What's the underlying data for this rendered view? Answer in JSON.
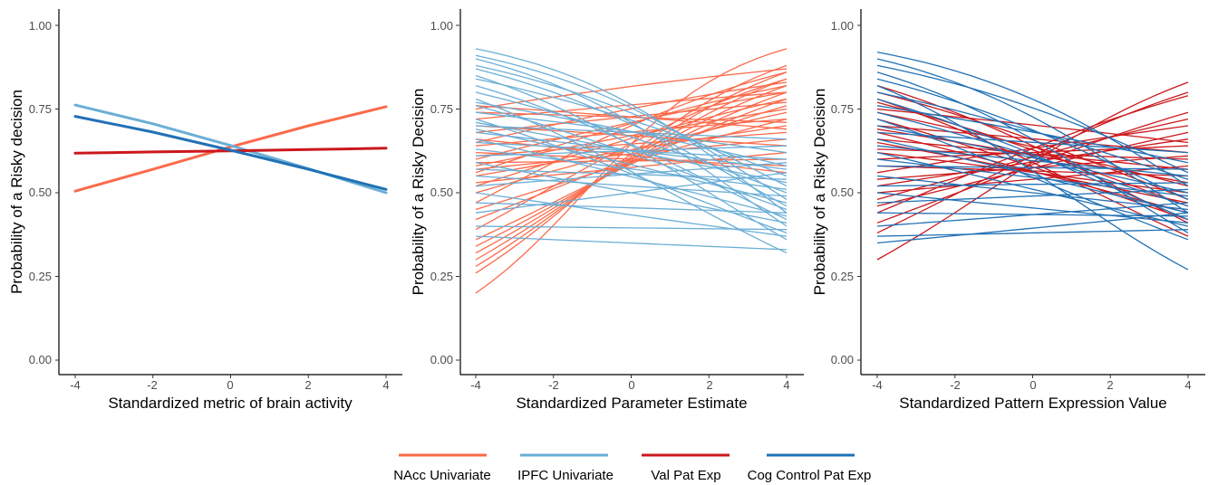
{
  "colors": {
    "nacc": "#fb6a4a",
    "ipfc": "#6baed6",
    "valpat": "#cb181d",
    "cogctrl": "#2171b5"
  },
  "legend": {
    "placement": "bottom",
    "items": [
      {
        "label": "NAcc Univariate",
        "color": "#fb6a4a"
      },
      {
        "label": "IPFC Univariate",
        "color": "#6baed6"
      },
      {
        "label": "Val Pat Exp",
        "color": "#cb181d"
      },
      {
        "label": "Cog Control Pat Exp",
        "color": "#2171b5"
      }
    ]
  },
  "chart_data": [
    {
      "type": "line",
      "xlabel": "Standardized metric of brain activity",
      "ylabel": "Probability of a Risky decision",
      "xlim": [
        -4,
        4
      ],
      "ylim": [
        0,
        1
      ],
      "xticks": [
        "-4",
        "-2",
        "0",
        "2",
        "4"
      ],
      "yticks": [
        "0.00",
        "0.25",
        "0.50",
        "0.75",
        "1.00"
      ],
      "grid": false,
      "series": [
        {
          "name": "NAcc Univariate",
          "color": "#fb6a4a",
          "x": [
            -4,
            -2,
            0,
            2,
            4
          ],
          "y": [
            0.505,
            0.57,
            0.637,
            0.7,
            0.757
          ]
        },
        {
          "name": "IPFC Univariate",
          "color": "#6baed6",
          "x": [
            -4,
            -2,
            0,
            2,
            4
          ],
          "y": [
            0.762,
            0.706,
            0.641,
            0.572,
            0.5
          ]
        },
        {
          "name": "Val Pat Exp",
          "color": "#cb181d",
          "x": [
            -4,
            -2,
            0,
            2,
            4
          ],
          "y": [
            0.618,
            0.622,
            0.625,
            0.629,
            0.633
          ]
        },
        {
          "name": "Cog Control Pat Exp",
          "color": "#2171b5",
          "x": [
            -4,
            -2,
            0,
            2,
            4
          ],
          "y": [
            0.728,
            0.681,
            0.627,
            0.57,
            0.51
          ]
        }
      ]
    },
    {
      "type": "line",
      "xlabel": "Standardized Parameter Estimate",
      "ylabel": "Probability of a Risky Decision",
      "xlim": [
        -4,
        4
      ],
      "ylim": [
        0,
        1
      ],
      "xticks": [
        "-4",
        "-2",
        "0",
        "2",
        "4"
      ],
      "yticks": [
        "0.00",
        "0.25",
        "0.50",
        "0.75",
        "1.00"
      ],
      "grid": false,
      "series": [
        {
          "name": "NAcc Univariate",
          "color": "#fb6a4a",
          "lines": [
            [
              -4,
              0.2,
              4,
              0.93
            ],
            [
              -4,
              0.26,
              4,
              0.88
            ],
            [
              -4,
              0.28,
              4,
              0.86
            ],
            [
              -4,
              0.3,
              4,
              0.84
            ],
            [
              -4,
              0.32,
              4,
              0.82
            ],
            [
              -4,
              0.34,
              4,
              0.8
            ],
            [
              -4,
              0.36,
              4,
              0.78
            ],
            [
              -4,
              0.39,
              4,
              0.84
            ],
            [
              -4,
              0.42,
              4,
              0.76
            ],
            [
              -4,
              0.45,
              4,
              0.72
            ],
            [
              -4,
              0.47,
              4,
              0.86
            ],
            [
              -4,
              0.5,
              4,
              0.74
            ],
            [
              -4,
              0.52,
              4,
              0.78
            ],
            [
              -4,
              0.53,
              4,
              0.62
            ],
            [
              -4,
              0.55,
              4,
              0.7
            ],
            [
              -4,
              0.56,
              4,
              0.82
            ],
            [
              -4,
              0.57,
              4,
              0.66
            ],
            [
              -4,
              0.58,
              4,
              0.75
            ],
            [
              -4,
              0.59,
              4,
              0.6
            ],
            [
              -4,
              0.6,
              4,
              0.8
            ],
            [
              -4,
              0.61,
              4,
              0.68
            ],
            [
              -4,
              0.62,
              4,
              0.58
            ],
            [
              -4,
              0.64,
              4,
              0.72
            ],
            [
              -4,
              0.65,
              4,
              0.83
            ],
            [
              -4,
              0.66,
              4,
              0.56
            ],
            [
              -4,
              0.68,
              4,
              0.77
            ],
            [
              -4,
              0.7,
              4,
              0.64
            ],
            [
              -4,
              0.72,
              4,
              0.8
            ],
            [
              -4,
              0.74,
              4,
              0.71
            ],
            [
              -4,
              0.75,
              4,
              0.87
            ],
            [
              -4,
              0.76,
              4,
              0.69
            ]
          ]
        },
        {
          "name": "IPFC Univariate",
          "color": "#6baed6",
          "lines": [
            [
              -4,
              0.93,
              4,
              0.44
            ],
            [
              -4,
              0.91,
              4,
              0.48
            ],
            [
              -4,
              0.9,
              4,
              0.4
            ],
            [
              -4,
              0.88,
              4,
              0.52
            ],
            [
              -4,
              0.87,
              4,
              0.46
            ],
            [
              -4,
              0.85,
              4,
              0.36
            ],
            [
              -4,
              0.84,
              4,
              0.55
            ],
            [
              -4,
              0.82,
              4,
              0.42
            ],
            [
              -4,
              0.8,
              4,
              0.5
            ],
            [
              -4,
              0.78,
              4,
              0.32
            ],
            [
              -4,
              0.77,
              4,
              0.58
            ],
            [
              -4,
              0.76,
              4,
              0.45
            ],
            [
              -4,
              0.74,
              4,
              0.62
            ],
            [
              -4,
              0.72,
              4,
              0.38
            ],
            [
              -4,
              0.71,
              4,
              0.53
            ],
            [
              -4,
              0.7,
              4,
              0.66
            ],
            [
              -4,
              0.69,
              4,
              0.47
            ],
            [
              -4,
              0.68,
              4,
              0.57
            ],
            [
              -4,
              0.66,
              4,
              0.43
            ],
            [
              -4,
              0.65,
              4,
              0.6
            ],
            [
              -4,
              0.63,
              4,
              0.51
            ],
            [
              -4,
              0.61,
              4,
              0.64
            ],
            [
              -4,
              0.59,
              4,
              0.41
            ],
            [
              -4,
              0.57,
              4,
              0.54
            ],
            [
              -4,
              0.55,
              4,
              0.49
            ],
            [
              -4,
              0.52,
              4,
              0.59
            ],
            [
              -4,
              0.5,
              4,
              0.37
            ],
            [
              -4,
              0.47,
              4,
              0.44
            ],
            [
              -4,
              0.44,
              4,
              0.56
            ],
            [
              -4,
              0.4,
              4,
              0.39
            ],
            [
              -4,
              0.37,
              4,
              0.33
            ]
          ]
        }
      ]
    },
    {
      "type": "line",
      "xlabel": "Standardized Pattern Expression Value",
      "ylabel": "Probability of a Risky Decision",
      "xlim": [
        -4,
        4
      ],
      "ylim": [
        0,
        1
      ],
      "xticks": [
        "-4",
        "-2",
        "0",
        "2",
        "4"
      ],
      "yticks": [
        "0.00",
        "0.25",
        "0.50",
        "0.75",
        "1.00"
      ],
      "grid": false,
      "series": [
        {
          "name": "Val Pat Exp",
          "color": "#cb181d",
          "lines": [
            [
              -4,
              0.3,
              4,
              0.83
            ],
            [
              -4,
              0.38,
              4,
              0.8
            ],
            [
              -4,
              0.41,
              4,
              0.74
            ],
            [
              -4,
              0.44,
              4,
              0.79
            ],
            [
              -4,
              0.46,
              4,
              0.68
            ],
            [
              -4,
              0.48,
              4,
              0.72
            ],
            [
              -4,
              0.5,
              4,
              0.58
            ],
            [
              -4,
              0.52,
              4,
              0.66
            ],
            [
              -4,
              0.54,
              4,
              0.61
            ],
            [
              -4,
              0.56,
              4,
              0.7
            ],
            [
              -4,
              0.58,
              4,
              0.55
            ],
            [
              -4,
              0.6,
              4,
              0.64
            ],
            [
              -4,
              0.62,
              4,
              0.5
            ],
            [
              -4,
              0.63,
              4,
              0.6
            ],
            [
              -4,
              0.65,
              4,
              0.47
            ],
            [
              -4,
              0.66,
              4,
              0.57
            ],
            [
              -4,
              0.68,
              4,
              0.44
            ],
            [
              -4,
              0.69,
              4,
              0.53
            ],
            [
              -4,
              0.7,
              4,
              0.62
            ],
            [
              -4,
              0.72,
              4,
              0.42
            ],
            [
              -4,
              0.74,
              4,
              0.52
            ],
            [
              -4,
              0.75,
              4,
              0.65
            ],
            [
              -4,
              0.77,
              4,
              0.46
            ],
            [
              -4,
              0.78,
              4,
              0.37
            ],
            [
              -4,
              0.8,
              4,
              0.48
            ],
            [
              -4,
              0.82,
              4,
              0.41
            ]
          ]
        },
        {
          "name": "Cog Control Pat Exp",
          "color": "#2171b5",
          "lines": [
            [
              -4,
              0.92,
              4,
              0.52
            ],
            [
              -4,
              0.9,
              4,
              0.44
            ],
            [
              -4,
              0.88,
              4,
              0.56
            ],
            [
              -4,
              0.86,
              4,
              0.38
            ],
            [
              -4,
              0.84,
              4,
              0.48
            ],
            [
              -4,
              0.82,
              4,
              0.27
            ],
            [
              -4,
              0.8,
              4,
              0.54
            ],
            [
              -4,
              0.78,
              4,
              0.42
            ],
            [
              -4,
              0.76,
              4,
              0.59
            ],
            [
              -4,
              0.74,
              4,
              0.46
            ],
            [
              -4,
              0.72,
              4,
              0.36
            ],
            [
              -4,
              0.7,
              4,
              0.5
            ],
            [
              -4,
              0.68,
              4,
              0.62
            ],
            [
              -4,
              0.66,
              4,
              0.44
            ],
            [
              -4,
              0.64,
              4,
              0.55
            ],
            [
              -4,
              0.62,
              4,
              0.4
            ],
            [
              -4,
              0.6,
              4,
              0.49
            ],
            [
              -4,
              0.58,
              4,
              0.57
            ],
            [
              -4,
              0.55,
              4,
              0.45
            ],
            [
              -4,
              0.52,
              4,
              0.53
            ],
            [
              -4,
              0.5,
              4,
              0.41
            ],
            [
              -4,
              0.47,
              4,
              0.51
            ],
            [
              -4,
              0.44,
              4,
              0.43
            ],
            [
              -4,
              0.4,
              4,
              0.47
            ],
            [
              -4,
              0.37,
              4,
              0.39
            ],
            [
              -4,
              0.35,
              4,
              0.44
            ]
          ]
        }
      ]
    }
  ]
}
